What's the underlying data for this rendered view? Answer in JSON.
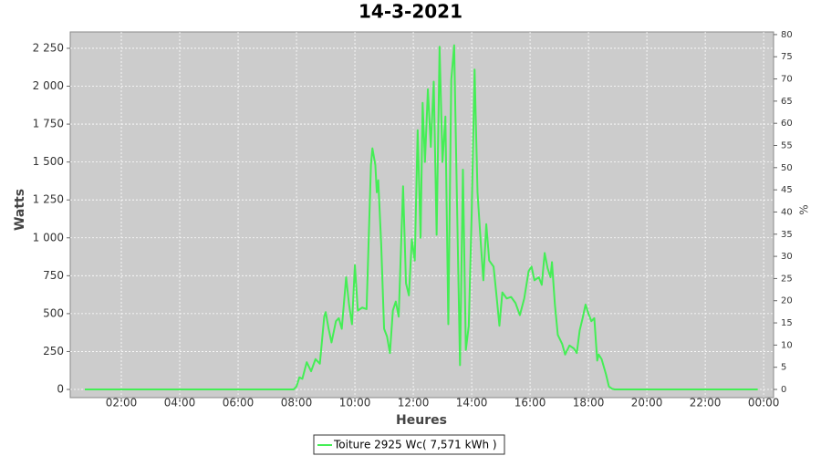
{
  "chart_data": {
    "type": "line",
    "title": "14-3-2021",
    "xlabel": "Heures",
    "ylabel": "Watts",
    "y2label": "%",
    "x": [
      0.75,
      7.9,
      8.0,
      8.1,
      8.2,
      8.35,
      8.5,
      8.65,
      8.8,
      8.95,
      9.0,
      9.1,
      9.2,
      9.35,
      9.45,
      9.55,
      9.7,
      9.8,
      9.9,
      10.0,
      10.1,
      10.25,
      10.4,
      10.55,
      10.6,
      10.7,
      10.75,
      10.8,
      10.9,
      11.0,
      11.1,
      11.2,
      11.3,
      11.4,
      11.5,
      11.65,
      11.75,
      11.85,
      11.95,
      12.05,
      12.15,
      12.25,
      12.32,
      12.4,
      12.5,
      12.6,
      12.7,
      12.8,
      12.9,
      13.0,
      13.1,
      13.2,
      13.3,
      13.4,
      13.5,
      13.6,
      13.7,
      13.8,
      13.9,
      14.0,
      14.1,
      14.2,
      14.3,
      14.4,
      14.5,
      14.6,
      14.75,
      14.85,
      14.95,
      15.05,
      15.2,
      15.35,
      15.5,
      15.65,
      15.8,
      15.95,
      16.05,
      16.15,
      16.3,
      16.4,
      16.5,
      16.6,
      16.7,
      16.75,
      16.85,
      16.95,
      17.1,
      17.2,
      17.35,
      17.5,
      17.6,
      17.7,
      17.8,
      17.9,
      18.0,
      18.1,
      18.2,
      18.3,
      18.35,
      18.45,
      18.6,
      18.7,
      18.8,
      18.9,
      23.8
    ],
    "series": [
      {
        "name": "Toiture 2925 Wc( 7,571 kWh )",
        "color": "#44ee55",
        "values": [
          0,
          0,
          20,
          80,
          70,
          180,
          120,
          200,
          170,
          480,
          510,
          400,
          310,
          450,
          470,
          400,
          740,
          560,
          430,
          820,
          520,
          540,
          530,
          1480,
          1590,
          1480,
          1300,
          1380,
          960,
          400,
          350,
          240,
          520,
          580,
          480,
          1340,
          700,
          620,
          990,
          850,
          1710,
          1000,
          1890,
          1500,
          1980,
          1600,
          2030,
          1020,
          2260,
          1500,
          1800,
          430,
          2040,
          2270,
          1200,
          160,
          1450,
          260,
          420,
          1160,
          2110,
          1300,
          1000,
          720,
          1090,
          850,
          810,
          620,
          420,
          640,
          600,
          610,
          570,
          490,
          600,
          780,
          810,
          720,
          740,
          690,
          900,
          800,
          740,
          840,
          560,
          360,
          300,
          230,
          290,
          270,
          240,
          390,
          470,
          560,
          500,
          450,
          470,
          190,
          230,
          200,
          100,
          20,
          5,
          0,
          0
        ]
      }
    ],
    "xlim": [
      0.25,
      24.34
    ],
    "xticks": [
      {
        "value": 2,
        "label": "02:00"
      },
      {
        "value": 4,
        "label": "04:00"
      },
      {
        "value": 6,
        "label": "06:00"
      },
      {
        "value": 8,
        "label": "08:00"
      },
      {
        "value": 10,
        "label": "10:00"
      },
      {
        "value": 12,
        "label": "12:00"
      },
      {
        "value": 14,
        "label": "14:00"
      },
      {
        "value": 16,
        "label": "16:00"
      },
      {
        "value": 18,
        "label": "18:00"
      },
      {
        "value": 20,
        "label": "20:00"
      },
      {
        "value": 22,
        "label": "22:00"
      },
      {
        "value": 24,
        "label": "00:00"
      }
    ],
    "ylim": [
      -54,
      2358
    ],
    "yticks": [
      0,
      250,
      500,
      750,
      {
        "value": 1000,
        "label": "1 000"
      },
      {
        "value": 1250,
        "label": "1 250"
      },
      {
        "value": 1500,
        "label": "1 500"
      },
      {
        "value": 1750,
        "label": "1 750"
      },
      {
        "value": 2000,
        "label": "2 000"
      },
      {
        "value": 2250,
        "label": "2 250"
      }
    ],
    "y2lim": [
      -1.85,
      80.6
    ],
    "y2ticks": [
      0,
      5,
      10,
      15,
      20,
      25,
      30,
      35,
      40,
      45,
      50,
      55,
      60,
      65,
      70,
      75,
      80
    ],
    "grid": true
  }
}
